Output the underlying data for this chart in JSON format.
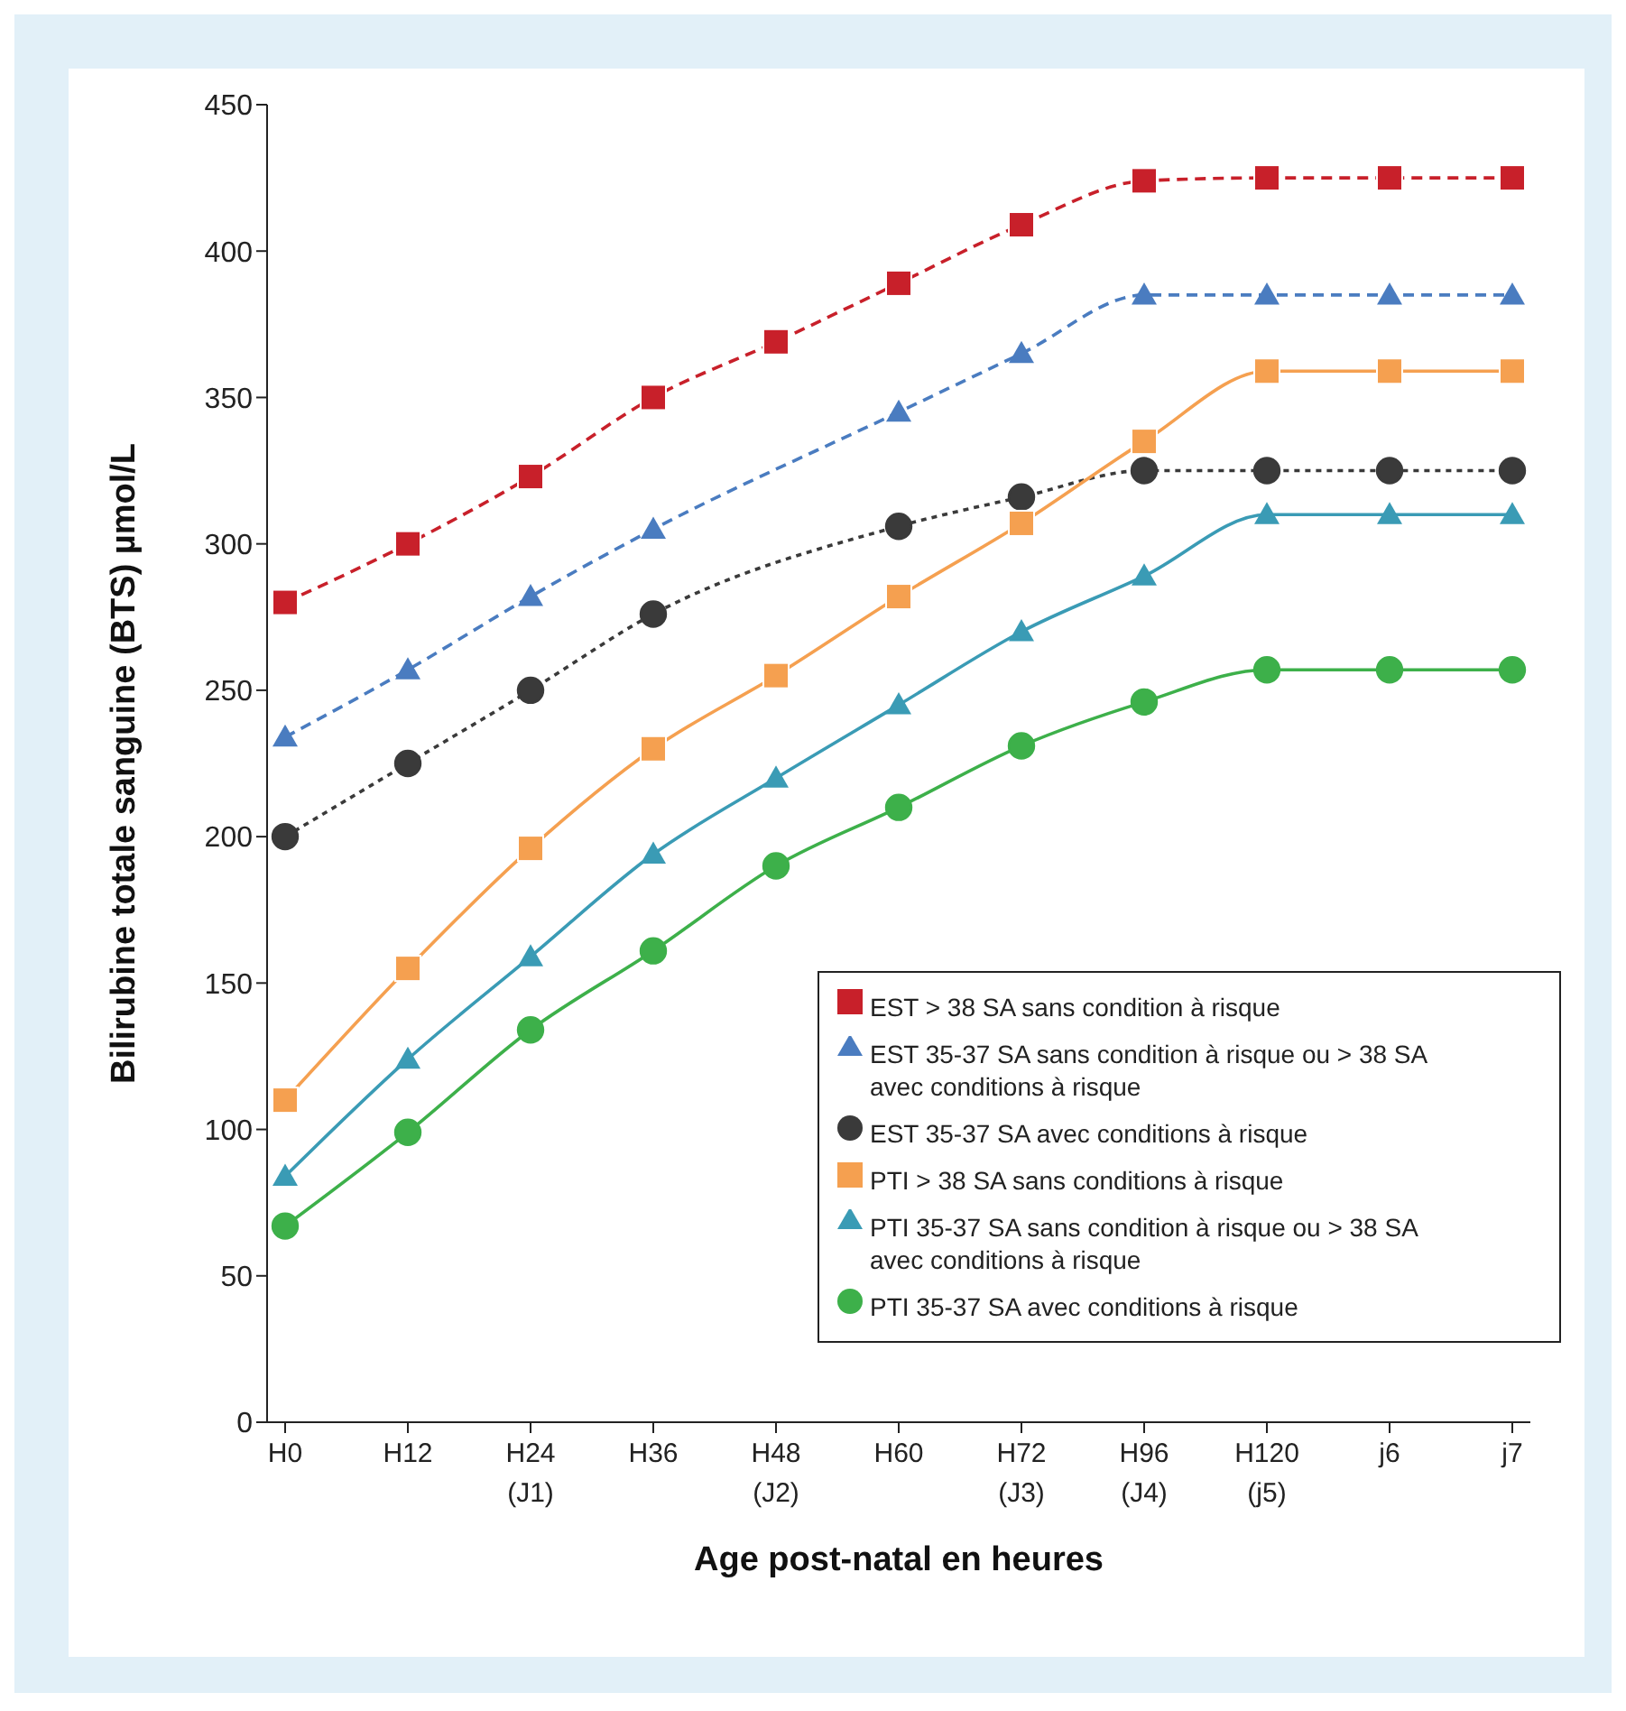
{
  "chart_data": {
    "type": "line",
    "xlabel": "Age post-natal en heures",
    "ylabel": "Bilirubine totale sanguine (BTS) µmol/L",
    "categories": [
      "H0",
      "H12",
      "H24 (J1)",
      "H36",
      "H48 (J2)",
      "H60",
      "H72 (J3)",
      "H96 (J4)",
      "H120 (j5)",
      "j6",
      "j7"
    ],
    "ylim": [
      0,
      450
    ],
    "yticks": [
      0,
      50,
      100,
      150,
      200,
      250,
      300,
      350,
      400,
      450
    ],
    "grid": false,
    "legend": "bottom right",
    "series": [
      {
        "name": "EST > 38 SA sans condition à risque",
        "color": "#c8202a",
        "line_style": "dashed",
        "marker": "square",
        "values": [
          280,
          300,
          323,
          350,
          369,
          389,
          409,
          424,
          425,
          425,
          425
        ]
      },
      {
        "name": "EST 35-37 SA sans condition à risque ou > 38 SA avec conditions à risque",
        "color": "#4a7cc0",
        "line_style": "dashed",
        "marker": "triangle",
        "values": [
          234,
          257,
          282,
          305,
          null,
          345,
          365,
          385,
          385,
          385,
          385
        ]
      },
      {
        "name": "EST 35-37 SA avec conditions à risque",
        "color": "#3a3a3a",
        "line_style": "dotted",
        "marker": "circle",
        "values": [
          200,
          225,
          250,
          276,
          null,
          306,
          316,
          325,
          325,
          325,
          325
        ]
      },
      {
        "name": "PTI > 38 SA sans conditions à risque",
        "color": "#f5a050",
        "line_style": "solid",
        "marker": "square",
        "values": [
          110,
          155,
          196,
          230,
          255,
          282,
          307,
          335,
          359,
          359,
          359
        ]
      },
      {
        "name": "PTI 35-37 SA sans condition à risque ou > 38 SA avec conditions à risque",
        "color": "#3a9bb5",
        "line_style": "solid",
        "marker": "triangle",
        "values": [
          84,
          124,
          159,
          194,
          220,
          245,
          270,
          289,
          310,
          310,
          310
        ]
      },
      {
        "name": "PTI 35-37 SA avec conditions à risque",
        "color": "#3db04a",
        "line_style": "solid",
        "marker": "circle",
        "values": [
          67,
          99,
          134,
          161,
          190,
          210,
          231,
          246,
          257,
          257,
          257
        ]
      }
    ]
  }
}
